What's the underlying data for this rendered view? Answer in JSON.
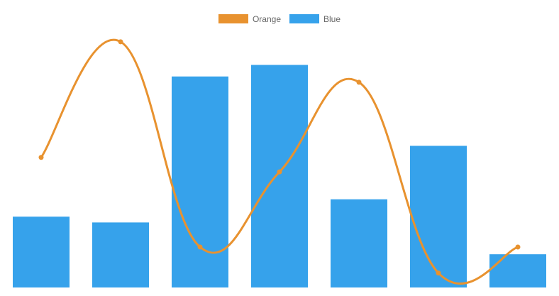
{
  "chart_data": {
    "type": "bar",
    "categories": [
      "",
      "",
      "",
      "",
      "",
      "",
      ""
    ],
    "series": [
      {
        "name": "Orange",
        "type": "line",
        "color": "#e8922f",
        "values": [
          45,
          85,
          14,
          40,
          71,
          5,
          14
        ],
        "curve": "smooth",
        "points": true
      },
      {
        "name": "Blue",
        "type": "bar",
        "color": "#36a2eb",
        "values": [
          24.5,
          22.5,
          73,
          77,
          30.5,
          49,
          11.5
        ]
      }
    ],
    "title": "",
    "xlabel": "",
    "ylabel": "",
    "ylim": [
      0,
      97
    ],
    "grid": false,
    "axes_visible": false,
    "legend": "top-center"
  }
}
